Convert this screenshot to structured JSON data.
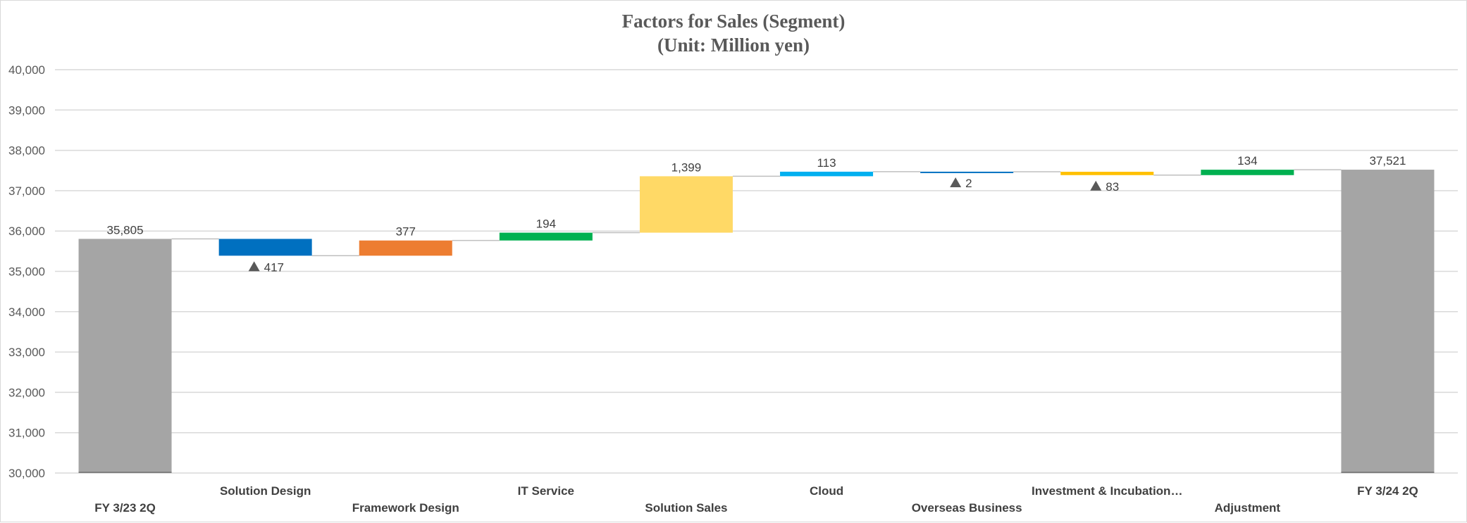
{
  "chart_data": {
    "type": "waterfall",
    "title": "Factors for Sales (Segment)",
    "subtitle": "(Unit: Million yen)",
    "ylim": [
      30000,
      40000
    ],
    "ytick_labels": [
      "30,000",
      "31,000",
      "32,000",
      "33,000",
      "34,000",
      "35,000",
      "36,000",
      "37,000",
      "38,000",
      "39,000",
      "40,000"
    ],
    "grid": true,
    "negative_marker": "▲",
    "steps": [
      {
        "label": "FY 3/23 2Q",
        "kind": "total",
        "value": 35805,
        "display": "35,805",
        "color": "#a5a5a5"
      },
      {
        "label": "Solution Design",
        "kind": "delta",
        "value": -417,
        "display": "417",
        "color": "#0070c0"
      },
      {
        "label": "Framework Design",
        "kind": "delta",
        "value": 377,
        "display": "377",
        "color": "#ed7d31"
      },
      {
        "label": "IT Service",
        "kind": "delta",
        "value": 194,
        "display": "194",
        "color": "#00b050"
      },
      {
        "label": "Solution Sales",
        "kind": "delta",
        "value": 1399,
        "display": "1,399",
        "color": "#ffd966"
      },
      {
        "label": "Cloud",
        "kind": "delta",
        "value": 113,
        "display": "113",
        "color": "#00b0f0"
      },
      {
        "label": "Overseas Business",
        "kind": "delta",
        "value": -2,
        "display": "2",
        "color": "#0070c0"
      },
      {
        "label": "Investment & Incubation…",
        "kind": "delta",
        "value": -83,
        "display": "83",
        "color": "#ffc000"
      },
      {
        "label": "Adjustment",
        "kind": "delta",
        "value": 134,
        "display": "134",
        "color": "#00b050"
      },
      {
        "label": "FY 3/24 2Q",
        "kind": "total",
        "value": 37521,
        "display": "37,521",
        "color": "#a5a5a5"
      }
    ]
  }
}
